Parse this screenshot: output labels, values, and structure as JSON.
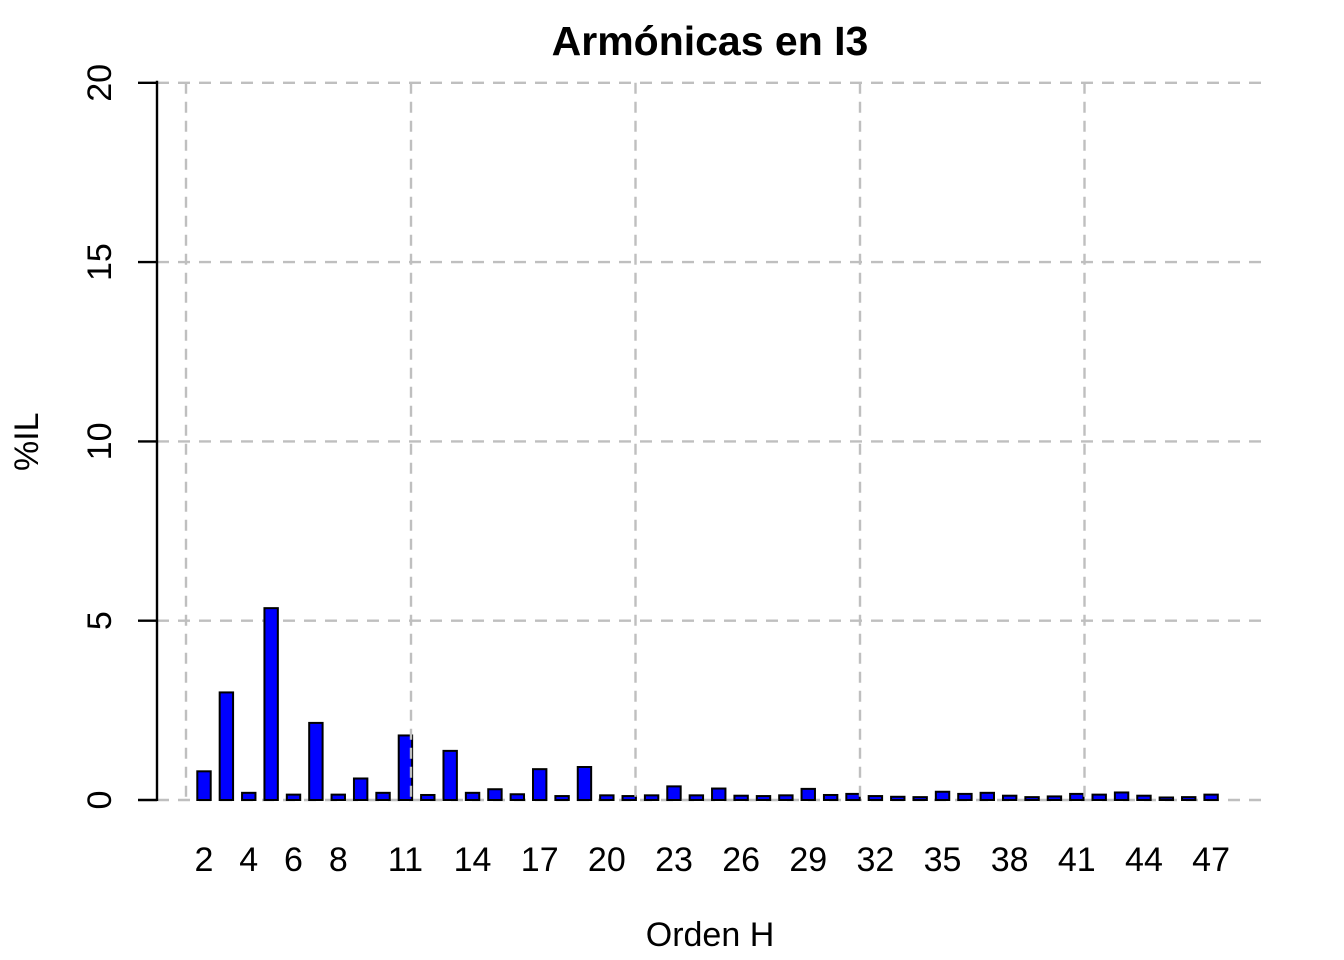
{
  "title": "Armónicas en I3",
  "colors": {
    "bar_fill": "#0000FF",
    "bar_stroke": "#000000",
    "grid": "#BFBFBF",
    "axis": "#000000",
    "text": "#000000",
    "background": "#FFFFFF"
  },
  "chart_data": {
    "type": "bar",
    "title": "Armónicas en I3",
    "xlabel": "Orden H",
    "ylabel": "%IL",
    "ylim": [
      0,
      20
    ],
    "yticks": [
      0,
      5,
      10,
      15,
      20
    ],
    "xtick_labels": [
      2,
      4,
      6,
      8,
      11,
      14,
      17,
      20,
      23,
      26,
      29,
      32,
      35,
      38,
      41,
      44,
      47
    ],
    "grid": true,
    "grid_style": "dashed",
    "legend": "none",
    "categories": [
      2,
      3,
      4,
      5,
      6,
      7,
      8,
      9,
      10,
      11,
      12,
      13,
      14,
      15,
      16,
      17,
      18,
      19,
      20,
      21,
      22,
      23,
      24,
      25,
      26,
      27,
      28,
      29,
      30,
      31,
      32,
      33,
      34,
      35,
      36,
      37,
      38,
      39,
      40,
      41,
      42,
      43,
      44,
      45,
      46,
      47
    ],
    "values": [
      0.8,
      3.0,
      0.2,
      5.35,
      0.15,
      2.15,
      0.15,
      0.6,
      0.2,
      1.8,
      0.14,
      1.37,
      0.2,
      0.3,
      0.16,
      0.86,
      0.11,
      0.92,
      0.13,
      0.11,
      0.13,
      0.38,
      0.13,
      0.32,
      0.12,
      0.11,
      0.13,
      0.31,
      0.14,
      0.17,
      0.11,
      0.09,
      0.08,
      0.23,
      0.17,
      0.2,
      0.12,
      0.08,
      0.1,
      0.17,
      0.15,
      0.21,
      0.12,
      0.07,
      0.08,
      0.15
    ]
  }
}
